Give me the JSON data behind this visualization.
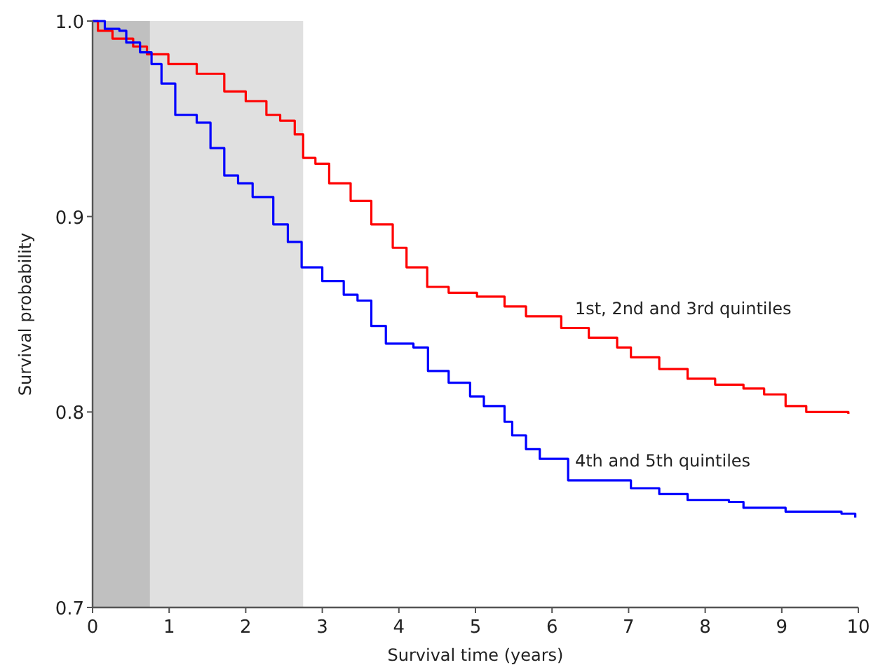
{
  "chart_data": {
    "type": "step",
    "xlabel": "Survival time (years)",
    "ylabel": "Survival probability",
    "xlim": [
      0,
      10
    ],
    "ylim": [
      0.7,
      1.0
    ],
    "xticks": [
      0,
      1,
      2,
      3,
      4,
      5,
      6,
      7,
      8,
      9,
      10
    ],
    "yticks": [
      0.7,
      0.8,
      0.9,
      {
        "value": 1.0,
        "label": "1.0"
      }
    ],
    "grid": false,
    "legend": false,
    "bands": [
      {
        "axis": "x",
        "from": 0,
        "to": 0.75,
        "color": "#c0c0c0"
      },
      {
        "axis": "x",
        "from": 0.75,
        "to": 2.75,
        "color": "#e0e0e0"
      }
    ],
    "series": [
      {
        "name": "1st, 2nd and 3rd quintiles",
        "color": "#ff0000",
        "x": [
          0,
          0.07,
          0.26,
          0.53,
          0.71,
          0.99,
          1.36,
          1.54,
          1.72,
          2.0,
          2.27,
          2.45,
          2.64,
          2.75,
          2.91,
          3.09,
          3.37,
          3.64,
          3.92,
          4.1,
          4.37,
          4.65,
          5.02,
          5.38,
          5.66,
          6.12,
          6.48,
          6.85,
          7.03,
          7.4,
          7.77,
          8.13,
          8.5,
          8.77,
          9.05,
          9.32,
          9.87
        ],
        "values": [
          1.0,
          0.995,
          0.991,
          0.987,
          0.983,
          0.978,
          0.973,
          0.973,
          0.964,
          0.959,
          0.952,
          0.949,
          0.942,
          0.93,
          0.927,
          0.917,
          0.908,
          0.896,
          0.884,
          0.874,
          0.864,
          0.861,
          0.859,
          0.854,
          0.849,
          0.843,
          0.838,
          0.833,
          0.828,
          0.822,
          0.817,
          0.814,
          0.812,
          0.809,
          0.803,
          0.8,
          0.799
        ]
      },
      {
        "name": "4th and 5th quintiles",
        "color": "#0000ff",
        "x": [
          0,
          0.11,
          0.16,
          0.35,
          0.44,
          0.62,
          0.77,
          0.9,
          1.08,
          1.36,
          1.54,
          1.72,
          1.9,
          2.09,
          2.36,
          2.55,
          2.73,
          3.0,
          3.28,
          3.46,
          3.64,
          3.83,
          4.19,
          4.38,
          4.65,
          4.93,
          5.11,
          5.38,
          5.48,
          5.66,
          5.84,
          6.21,
          6.85,
          7.03,
          7.4,
          7.77,
          8.31,
          8.5,
          9.05,
          9.78,
          9.96
        ],
        "values": [
          1.0,
          1.0,
          0.996,
          0.995,
          0.989,
          0.984,
          0.978,
          0.968,
          0.952,
          0.948,
          0.935,
          0.921,
          0.917,
          0.91,
          0.896,
          0.887,
          0.874,
          0.867,
          0.86,
          0.857,
          0.844,
          0.835,
          0.833,
          0.821,
          0.815,
          0.808,
          0.803,
          0.795,
          0.788,
          0.781,
          0.776,
          0.765,
          0.765,
          0.761,
          0.758,
          0.755,
          0.754,
          0.751,
          0.749,
          0.748,
          0.746
        ]
      }
    ]
  }
}
